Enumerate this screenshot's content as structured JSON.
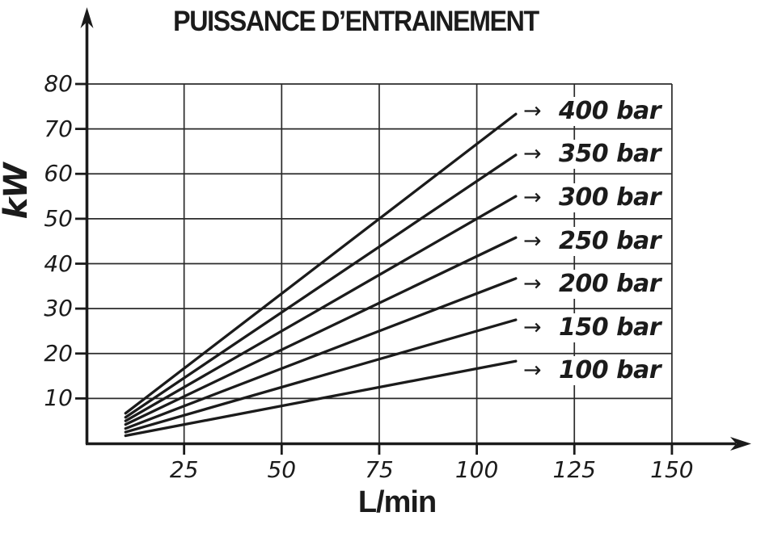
{
  "title": "PUISSANCE D’ENTRAINEMENT",
  "icons": {
    "arrow_right": "→"
  },
  "colors": {
    "ink": "#1b1b1b",
    "grid": "#2b2b2b",
    "background": "#ffffff"
  },
  "chart_data": {
    "type": "line",
    "title": "PUISSANCE D’ENTRAINEMENT",
    "xlabel": "L/min",
    "ylabel": "kW",
    "xlim": [
      0,
      158
    ],
    "ylim": [
      0,
      84
    ],
    "x_ticks": [
      25,
      50,
      75,
      100,
      125,
      150
    ],
    "y_ticks": [
      10,
      20,
      30,
      40,
      50,
      60,
      70,
      80
    ],
    "grid": true,
    "legend_position": "right of line ends, arrow-labeled",
    "flow_range_lmin": [
      10,
      110
    ],
    "series": [
      {
        "name": "400 bar",
        "pressure_bar": 400,
        "x": [
          10,
          110
        ],
        "y": [
          6.7,
          73.3
        ]
      },
      {
        "name": "350 bar",
        "pressure_bar": 350,
        "x": [
          10,
          110
        ],
        "y": [
          5.8,
          64.2
        ]
      },
      {
        "name": "300 bar",
        "pressure_bar": 300,
        "x": [
          10,
          110
        ],
        "y": [
          5.0,
          55.0
        ]
      },
      {
        "name": "250 bar",
        "pressure_bar": 250,
        "x": [
          10,
          110
        ],
        "y": [
          4.2,
          45.8
        ]
      },
      {
        "name": "200 bar",
        "pressure_bar": 200,
        "x": [
          10,
          110
        ],
        "y": [
          3.3,
          36.7
        ]
      },
      {
        "name": "150 bar",
        "pressure_bar": 150,
        "x": [
          10,
          110
        ],
        "y": [
          2.5,
          27.5
        ]
      },
      {
        "name": "100 bar",
        "pressure_bar": 100,
        "x": [
          10,
          110
        ],
        "y": [
          1.7,
          18.3
        ]
      }
    ]
  }
}
